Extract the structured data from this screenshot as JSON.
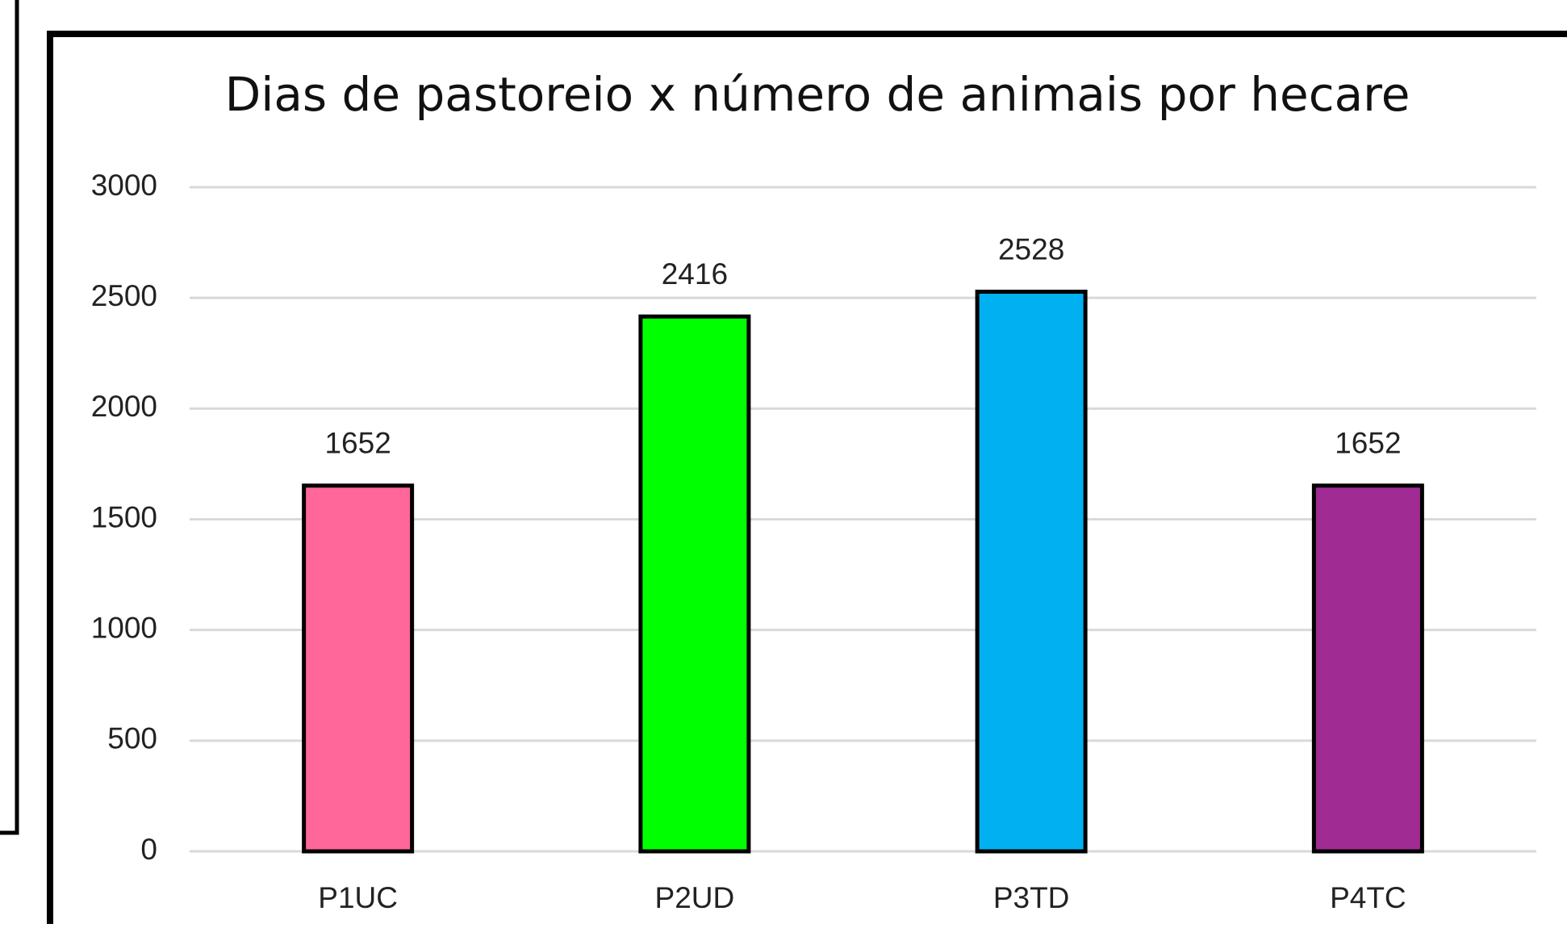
{
  "chart_data": {
    "type": "bar",
    "title": "Dias de pastoreio x número de animais por hecare",
    "categories": [
      "P1UC",
      "P2UD",
      "P3TD",
      "P4TC"
    ],
    "values": [
      1652,
      2416,
      2528,
      1652
    ],
    "colors": [
      "#ff6699",
      "#00ff00",
      "#00b0f0",
      "#a02b93"
    ],
    "ylim": [
      0,
      3000
    ],
    "yticks": [
      0,
      500,
      1000,
      1500,
      2000,
      2500,
      3000
    ],
    "grid": true
  }
}
